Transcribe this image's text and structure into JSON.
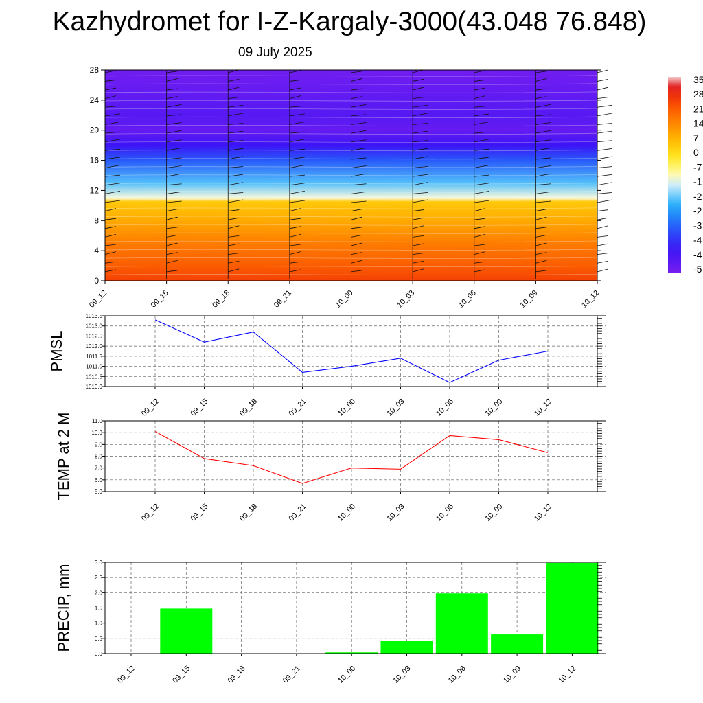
{
  "header": {
    "title": "Kazhydromet for I-Z-Kargaly-3000(43.048 76.848)",
    "date": "09 July 2025"
  },
  "colors": {
    "pmsl_line": "#0000ff",
    "temp_line": "#ff0000",
    "precip_bar": "#00ff00"
  },
  "chart_data": [
    {
      "type": "heatmap",
      "title": "",
      "x": [
        "09_12",
        "09_15",
        "09_18",
        "09_21",
        "10_00",
        "10_03",
        "10_06",
        "10_09",
        "10_12"
      ],
      "y_ticks": [
        "0",
        "4",
        "8",
        "12",
        "16",
        "20",
        "24",
        "28"
      ],
      "ylim": [
        0,
        28
      ],
      "colorbar_labels": [
        "35",
        "28",
        "21",
        "14",
        "7",
        "0",
        "-7",
        "-1",
        "-2",
        "-2",
        "-3",
        "-4",
        "-4",
        "-5"
      ],
      "colorbar_range": [
        -56,
        35
      ],
      "field": "temperature with wind barbs",
      "temperature_by_height": [
        {
          "h": 0,
          "t": 24
        },
        {
          "h": 2,
          "t": 20
        },
        {
          "h": 5,
          "t": 15
        },
        {
          "h": 8,
          "t": 8
        },
        {
          "h": 10.5,
          "t": 3
        },
        {
          "h": 11,
          "t": -12
        },
        {
          "h": 13,
          "t": -22
        },
        {
          "h": 16,
          "t": -35
        },
        {
          "h": 18,
          "t": -45
        },
        {
          "h": 20,
          "t": -53
        },
        {
          "h": 22,
          "t": -50
        },
        {
          "h": 28,
          "t": -55
        }
      ]
    },
    {
      "type": "line",
      "ylabel": "PMSL",
      "categories": [
        "09_12",
        "09_15",
        "09_18",
        "09_21",
        "10_00",
        "10_03",
        "10_06",
        "10_09",
        "10_12"
      ],
      "values": [
        1013.3,
        1012.2,
        1012.7,
        1010.7,
        1011.0,
        1011.4,
        1010.2,
        1011.3,
        1011.75
      ],
      "ylim": [
        1010.0,
        1013.5
      ],
      "y_ticks": [
        "1010.0",
        "1010.5",
        "1011.0",
        "1011.5",
        "1012.0",
        "1012.5",
        "1013.0",
        "1013.5"
      ],
      "grid": true
    },
    {
      "type": "line",
      "ylabel": "TEMP at 2 M",
      "categories": [
        "09_12",
        "09_15",
        "09_18",
        "09_21",
        "10_00",
        "10_03",
        "10_06",
        "10_09",
        "10_12"
      ],
      "values": [
        10.1,
        7.8,
        7.2,
        5.7,
        7.0,
        6.9,
        9.75,
        9.4,
        8.3
      ],
      "ylim": [
        5.0,
        11.0
      ],
      "y_ticks": [
        "5.0",
        "6.0",
        "7.0",
        "8.0",
        "9.0",
        "10.0",
        "11.0"
      ],
      "grid": true
    },
    {
      "type": "bar",
      "ylabel": "PRECIP, mm",
      "categories": [
        "09_12",
        "09_15",
        "09_18",
        "09_21",
        "10_00",
        "10_03",
        "10_06",
        "10_09",
        "10_12"
      ],
      "values": [
        0,
        1.48,
        0,
        0,
        0.04,
        0.42,
        1.98,
        0.63,
        2.98
      ],
      "ylim": [
        0.0,
        3.0
      ],
      "y_ticks": [
        "0.0",
        "0.5",
        "1.0",
        "1.5",
        "2.0",
        "2.5",
        "3.0"
      ],
      "grid": true
    }
  ]
}
